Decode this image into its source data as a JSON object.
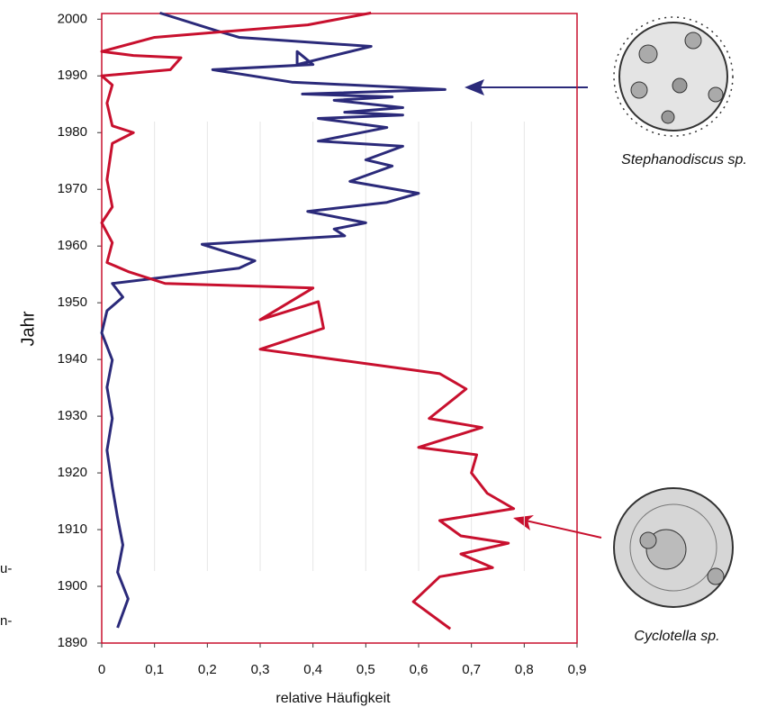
{
  "chart_data": {
    "type": "line",
    "xlabel": "relative Häufigkeit",
    "ylabel": "Jahr",
    "annotations": [
      "Stephanodiscus sp.",
      "Cyclotella sp."
    ],
    "fragments": [
      "u-",
      "n-"
    ],
    "xlim": [
      0,
      0.9
    ],
    "xticks": [
      0,
      {
        "value": 0.1,
        "label": "0,1"
      },
      {
        "value": 0.2,
        "label": "0,2"
      },
      {
        "value": 0.3,
        "label": "0,3"
      },
      {
        "value": 0.4,
        "label": "0,4"
      },
      {
        "value": 0.5,
        "label": "0,5"
      },
      {
        "value": 0.6,
        "label": "0,6"
      },
      {
        "value": 0.7,
        "label": "0,7"
      },
      {
        "value": 0.8,
        "label": "0,8"
      },
      {
        "value": 0.9,
        "label": "0,9"
      }
    ],
    "ylim": [
      1890,
      2001
    ],
    "yticks": [
      1890,
      1900,
      1910,
      1920,
      1930,
      1940,
      1950,
      1960,
      1970,
      1980,
      1990,
      2000
    ],
    "grid": true,
    "series": [
      {
        "name": "Stephanodiscus sp.",
        "color": "#2b2a7a",
        "years": [
          2001.1,
          1997.9,
          1996.8,
          1995.2,
          1992,
          1994.3,
          1992,
          1991.1,
          1988.9,
          1987.6,
          1986.8,
          1986.3,
          1985.7,
          1984.4,
          1983.6,
          1983.1,
          1982.5,
          1980.9,
          1978.5,
          1977.6,
          1975.2,
          1974.1,
          1971.4,
          1969.3,
          1967.7,
          1966.1,
          1964.1,
          1963,
          1961.8,
          1960.3,
          1957.4,
          1956.1,
          1953.4,
          1951,
          1948.6,
          1944.7,
          1939.9,
          1935.1,
          1929.6,
          1924,
          1917.6,
          1912.1,
          1907.3,
          1902.5,
          1897.8,
          1892.7
        ],
        "values": [
          0.11,
          0.22,
          0.26,
          0.51,
          0.37,
          0.37,
          0.4,
          0.21,
          0.36,
          0.65,
          0.38,
          0.55,
          0.44,
          0.57,
          0.46,
          0.57,
          0.41,
          0.54,
          0.41,
          0.57,
          0.5,
          0.55,
          0.47,
          0.6,
          0.54,
          0.39,
          0.5,
          0.44,
          0.46,
          0.19,
          0.29,
          0.26,
          0.02,
          0.04,
          0.01,
          0,
          0.02,
          0.01,
          0.02,
          0.01,
          0.02,
          0.03,
          0.04,
          0.03,
          0.05,
          0.03
        ]
      },
      {
        "name": "Cyclotella sp.",
        "color": "#c8102e",
        "years": [
          2001.1,
          1999,
          1996.8,
          1994.3,
          1993.6,
          1993.2,
          1991.1,
          1990,
          1988.4,
          1985.2,
          1981.2,
          1980,
          1978.1,
          1971.7,
          1966.9,
          1964.1,
          1960.6,
          1957.1,
          1955.5,
          1953.4,
          1952.9,
          1952.6,
          1947,
          1950.2,
          1945.5,
          1941.8,
          1937.5,
          1934.8,
          1929.6,
          1928,
          1924.5,
          1923.2,
          1920,
          1916.4,
          1913.7,
          1911.6,
          1908.9,
          1907.6,
          1905.7,
          1903.3,
          1901.7,
          1897.3,
          1892.5
        ],
        "values": [
          0.51,
          0.39,
          0.1,
          0,
          0.06,
          0.15,
          0.13,
          0,
          0.02,
          0.01,
          0.02,
          0.06,
          0.02,
          0.01,
          0.02,
          0,
          0.02,
          0.01,
          0.05,
          0.12,
          0.3,
          0.4,
          0.3,
          0.41,
          0.42,
          0.3,
          0.64,
          0.69,
          0.62,
          0.72,
          0.6,
          0.71,
          0.7,
          0.73,
          0.78,
          0.64,
          0.68,
          0.77,
          0.68,
          0.74,
          0.64,
          0.59,
          0.66
        ]
      }
    ]
  }
}
